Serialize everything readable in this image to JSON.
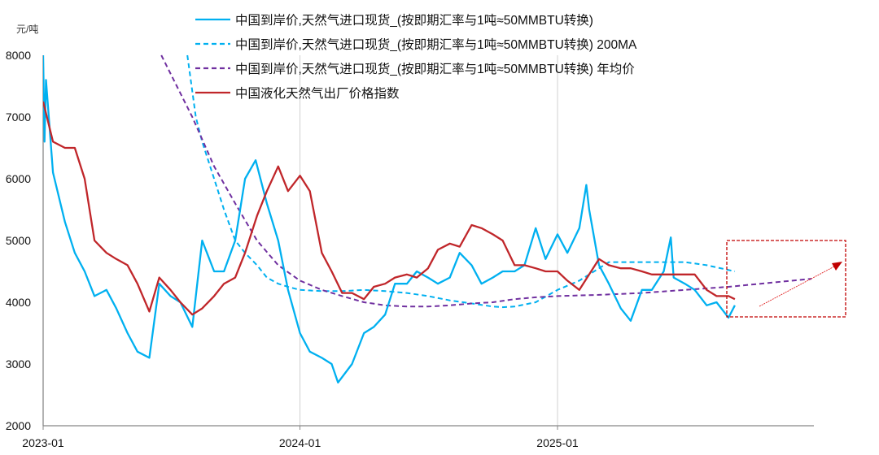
{
  "chart_data": {
    "type": "line",
    "title": "",
    "ylabel": "元/吨",
    "xlabel": "",
    "ylim": [
      2000,
      8000
    ],
    "yticks": [
      "2000",
      "3000",
      "4000",
      "5000",
      "6000",
      "7000",
      "8000"
    ],
    "xticks": [
      "2023-01",
      "2024-01",
      "2025-01"
    ],
    "xlim": [
      "2023-01-01",
      "2025-12-28"
    ],
    "grid": "vertical lines at year ticks",
    "legend_position": "top-center",
    "series": [
      {
        "name": "中国到岸价,天然气进口现货_(按即期汇率与1吨≈50MMBTU转换)",
        "color": "#00b0f0",
        "style": "solid",
        "points": [
          [
            "2023-01-01",
            8000
          ],
          [
            "2023-01-03",
            6600
          ],
          [
            "2023-01-05",
            7600
          ],
          [
            "2023-01-15",
            6100
          ],
          [
            "2023-02-01",
            5300
          ],
          [
            "2023-02-15",
            4800
          ],
          [
            "2023-03-01",
            4500
          ],
          [
            "2023-03-15",
            4100
          ],
          [
            "2023-04-01",
            4200
          ],
          [
            "2023-04-15",
            3900
          ],
          [
            "2023-05-01",
            3500
          ],
          [
            "2023-05-15",
            3200
          ],
          [
            "2023-06-01",
            3100
          ],
          [
            "2023-06-15",
            4300
          ],
          [
            "2023-07-01",
            4100
          ],
          [
            "2023-07-15",
            4000
          ],
          [
            "2023-08-01",
            3600
          ],
          [
            "2023-08-15",
            5000
          ],
          [
            "2023-09-01",
            4500
          ],
          [
            "2023-09-15",
            4500
          ],
          [
            "2023-10-01",
            5000
          ],
          [
            "2023-10-15",
            6000
          ],
          [
            "2023-10-30",
            6300
          ],
          [
            "2023-11-15",
            5600
          ],
          [
            "2023-12-01",
            5000
          ],
          [
            "2023-12-15",
            4200
          ],
          [
            "2024-01-01",
            3500
          ],
          [
            "2024-01-15",
            3200
          ],
          [
            "2024-02-01",
            3100
          ],
          [
            "2024-02-15",
            3000
          ],
          [
            "2024-02-24",
            2700
          ],
          [
            "2024-03-15",
            3000
          ],
          [
            "2024-04-01",
            3500
          ],
          [
            "2024-04-15",
            3600
          ],
          [
            "2024-05-01",
            3800
          ],
          [
            "2024-05-15",
            4300
          ],
          [
            "2024-06-01",
            4300
          ],
          [
            "2024-06-15",
            4500
          ],
          [
            "2024-07-01",
            4400
          ],
          [
            "2024-07-15",
            4300
          ],
          [
            "2024-08-01",
            4400
          ],
          [
            "2024-08-15",
            4800
          ],
          [
            "2024-09-01",
            4600
          ],
          [
            "2024-09-15",
            4300
          ],
          [
            "2024-10-01",
            4400
          ],
          [
            "2024-10-15",
            4500
          ],
          [
            "2024-11-01",
            4500
          ],
          [
            "2024-11-15",
            4600
          ],
          [
            "2024-12-01",
            5200
          ],
          [
            "2024-12-15",
            4700
          ],
          [
            "2025-01-01",
            5100
          ],
          [
            "2025-01-15",
            4800
          ],
          [
            "2025-02-01",
            5200
          ],
          [
            "2025-02-11",
            5900
          ],
          [
            "2025-02-15",
            5500
          ],
          [
            "2025-03-01",
            4600
          ],
          [
            "2025-03-15",
            4300
          ],
          [
            "2025-04-01",
            3900
          ],
          [
            "2025-04-15",
            3700
          ],
          [
            "2025-05-01",
            4200
          ],
          [
            "2025-05-15",
            4200
          ],
          [
            "2025-06-01",
            4500
          ],
          [
            "2025-06-11",
            5050
          ],
          [
            "2025-06-15",
            4400
          ],
          [
            "2025-07-01",
            4300
          ],
          [
            "2025-07-15",
            4200
          ],
          [
            "2025-08-01",
            3950
          ],
          [
            "2025-08-15",
            4000
          ],
          [
            "2025-09-01",
            3750
          ],
          [
            "2025-09-10",
            3950
          ]
        ]
      },
      {
        "name": "中国到岸价,天然气进口现货_(按即期汇率与1吨≈50MMBTU转换) 200MA",
        "color": "#00b0f0",
        "style": "dashed",
        "points": [
          [
            "2023-07-25",
            8000
          ],
          [
            "2023-08-06",
            7000
          ],
          [
            "2023-08-15",
            6600
          ],
          [
            "2023-09-01",
            6000
          ],
          [
            "2023-09-15",
            5500
          ],
          [
            "2023-10-01",
            5000
          ],
          [
            "2023-10-15",
            4800
          ],
          [
            "2023-11-01",
            4600
          ],
          [
            "2023-11-15",
            4400
          ],
          [
            "2023-12-01",
            4300
          ],
          [
            "2023-12-15",
            4250
          ],
          [
            "2024-01-01",
            4200
          ],
          [
            "2024-02-01",
            4180
          ],
          [
            "2024-03-01",
            4180
          ],
          [
            "2024-04-01",
            4200
          ],
          [
            "2024-05-01",
            4180
          ],
          [
            "2024-06-01",
            4150
          ],
          [
            "2024-07-01",
            4100
          ],
          [
            "2024-08-01",
            4030
          ],
          [
            "2024-09-01",
            3980
          ],
          [
            "2024-10-01",
            3930
          ],
          [
            "2024-10-15",
            3920
          ],
          [
            "2024-11-01",
            3930
          ],
          [
            "2024-12-01",
            4000
          ],
          [
            "2025-01-01",
            4200
          ],
          [
            "2025-02-01",
            4350
          ],
          [
            "2025-03-01",
            4550
          ],
          [
            "2025-03-15",
            4650
          ],
          [
            "2025-05-01",
            4650
          ],
          [
            "2025-07-01",
            4650
          ],
          [
            "2025-08-01",
            4600
          ],
          [
            "2025-09-10",
            4500
          ]
        ]
      },
      {
        "name": "中国到岸价,天然气进口现货_(按即期汇率与1吨≈50MMBTU转换) 年均价",
        "color": "#7030a0",
        "style": "dashed",
        "points": [
          [
            "2023-06-18",
            8000
          ],
          [
            "2023-08-01",
            7000
          ],
          [
            "2023-09-01",
            6200
          ],
          [
            "2023-10-01",
            5600
          ],
          [
            "2023-11-01",
            5000
          ],
          [
            "2023-12-01",
            4600
          ],
          [
            "2024-01-01",
            4350
          ],
          [
            "2024-02-01",
            4200
          ],
          [
            "2024-03-01",
            4100
          ],
          [
            "2024-04-01",
            4000
          ],
          [
            "2024-05-01",
            3950
          ],
          [
            "2024-06-01",
            3930
          ],
          [
            "2024-07-01",
            3930
          ],
          [
            "2024-08-01",
            3950
          ],
          [
            "2024-09-01",
            3980
          ],
          [
            "2024-10-01",
            4000
          ],
          [
            "2024-11-01",
            4050
          ],
          [
            "2024-12-01",
            4080
          ],
          [
            "2025-01-01",
            4100
          ],
          [
            "2025-03-01",
            4120
          ],
          [
            "2025-05-01",
            4150
          ],
          [
            "2025-07-01",
            4200
          ],
          [
            "2025-09-01",
            4250
          ],
          [
            "2025-12-28",
            4380
          ]
        ]
      },
      {
        "name": "中国液化天然气出厂价格指数",
        "color": "#c0262a",
        "style": "solid",
        "points": [
          [
            "2023-01-01",
            7250
          ],
          [
            "2023-01-15",
            6600
          ],
          [
            "2023-02-01",
            6500
          ],
          [
            "2023-02-15",
            6500
          ],
          [
            "2023-03-01",
            6000
          ],
          [
            "2023-03-15",
            5000
          ],
          [
            "2023-04-01",
            4800
          ],
          [
            "2023-04-15",
            4700
          ],
          [
            "2023-05-01",
            4600
          ],
          [
            "2023-05-15",
            4300
          ],
          [
            "2023-06-01",
            3850
          ],
          [
            "2023-06-15",
            4400
          ],
          [
            "2023-07-01",
            4200
          ],
          [
            "2023-07-15",
            4000
          ],
          [
            "2023-08-01",
            3800
          ],
          [
            "2023-08-15",
            3900
          ],
          [
            "2023-09-01",
            4100
          ],
          [
            "2023-09-15",
            4300
          ],
          [
            "2023-10-01",
            4400
          ],
          [
            "2023-10-15",
            4800
          ],
          [
            "2023-11-01",
            5400
          ],
          [
            "2023-11-15",
            5800
          ],
          [
            "2023-12-01",
            6200
          ],
          [
            "2023-12-15",
            5800
          ],
          [
            "2024-01-01",
            6050
          ],
          [
            "2024-01-15",
            5800
          ],
          [
            "2024-02-01",
            4800
          ],
          [
            "2024-02-15",
            4500
          ],
          [
            "2024-03-01",
            4150
          ],
          [
            "2024-03-15",
            4150
          ],
          [
            "2024-04-01",
            4050
          ],
          [
            "2024-04-15",
            4250
          ],
          [
            "2024-05-01",
            4300
          ],
          [
            "2024-05-15",
            4400
          ],
          [
            "2024-06-01",
            4450
          ],
          [
            "2024-06-15",
            4400
          ],
          [
            "2024-07-01",
            4550
          ],
          [
            "2024-07-15",
            4850
          ],
          [
            "2024-08-01",
            4950
          ],
          [
            "2024-08-15",
            4900
          ],
          [
            "2024-09-01",
            5250
          ],
          [
            "2024-09-15",
            5200
          ],
          [
            "2024-10-01",
            5100
          ],
          [
            "2024-10-15",
            5000
          ],
          [
            "2024-11-01",
            4600
          ],
          [
            "2024-11-15",
            4600
          ],
          [
            "2024-12-01",
            4550
          ],
          [
            "2024-12-15",
            4500
          ],
          [
            "2025-01-01",
            4500
          ],
          [
            "2025-01-15",
            4350
          ],
          [
            "2025-02-01",
            4200
          ],
          [
            "2025-02-15",
            4450
          ],
          [
            "2025-03-01",
            4700
          ],
          [
            "2025-03-15",
            4600
          ],
          [
            "2025-04-01",
            4550
          ],
          [
            "2025-04-15",
            4550
          ],
          [
            "2025-05-01",
            4500
          ],
          [
            "2025-05-15",
            4450
          ],
          [
            "2025-06-01",
            4450
          ],
          [
            "2025-06-15",
            4450
          ],
          [
            "2025-07-01",
            4450
          ],
          [
            "2025-07-15",
            4450
          ],
          [
            "2025-08-01",
            4200
          ],
          [
            "2025-08-15",
            4100
          ],
          [
            "2025-09-01",
            4100
          ],
          [
            "2025-09-10",
            4050
          ]
        ]
      }
    ],
    "annotation": {
      "type": "dashed box with upward arrow",
      "color": "#c00000"
    }
  }
}
